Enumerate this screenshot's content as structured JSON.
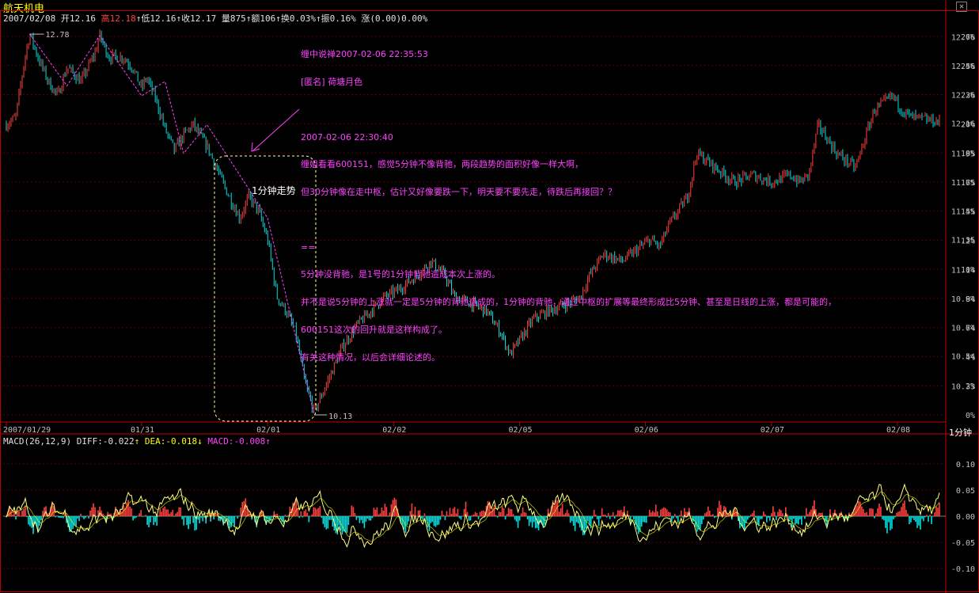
{
  "stock_name": "航天机电",
  "info": {
    "date": "2007/02/08",
    "open_label": "开",
    "open": "12.16",
    "high_label": "高",
    "high": "12.18",
    "low_label": "低",
    "low": "12.16",
    "close_label": "收",
    "close": "12.17",
    "vol_label": "量",
    "vol": "875",
    "amt_label": "额",
    "amt": "106",
    "turn_label": "换",
    "turn": "0.03%",
    "amp_label": "振",
    "amp": "0.16%",
    "chg_label": "涨",
    "chg": "(0.00)0.00%",
    "arrow": "↑"
  },
  "annotation": {
    "lines": [
      "缠中说禅2007-02-06 22:35:53",
      "[匿名] 荷塘月色",
      "",
      "2007-02-06 22:30:40",
      "缠姐看看600151，感觉5分钟不像背驰，两段趋势的面积好像一样大啊，",
      "但30分钟像在走中枢，估计又好像要跌一下，明天要不要先走，待跌后再接回？？",
      "",
      "==",
      "5分钟没背驰，是1号的1分钟背驰造成本次上涨的。",
      "并不是说5分钟的上涨就一定是5分钟的背驰造成的，1分钟的背驰，通过中枢的扩展等最终形成比5分钟、甚至是日线的上涨，都是可能的，",
      "600151这次的回升就是这样构成了。",
      "有关这种情况，以后会详细论述的。"
    ],
    "box_label": "1分钟走势"
  },
  "period": "1分钟",
  "colors": {
    "up": "#ff4040",
    "down": "#00e0e0",
    "dif": "#ffff80",
    "pen": "#ff40ff",
    "frame": "#c00000",
    "axis": "#c0c0c0"
  },
  "chart_data": [
    {
      "type": "candlestick",
      "title": "航天机电",
      "price_ticks": [
        "12.76",
        "12.56",
        "12.36",
        "12.16",
        "11.95",
        "11.75",
        "11.55",
        "11.35",
        "11.14",
        "10.94",
        "10.74",
        "10.54",
        "10.33"
      ],
      "pct_ticks": [
        "26%",
        "24%",
        "22%",
        "20%",
        "18%",
        "16%",
        "14%",
        "12%",
        "10%",
        "8%",
        "6%",
        "4%",
        "2%",
        "0%"
      ],
      "x_ticks": [
        "2007/01/29",
        "01/31",
        "02/01",
        "02/02",
        "02/05",
        "02/06",
        "02/07",
        "02/08"
      ],
      "ylim": [
        10.13,
        12.83
      ],
      "high_mark": "12.78",
      "low_mark": "10.13",
      "close_path": [
        [
          0,
          12.15
        ],
        [
          0.01,
          12.2
        ],
        [
          0.02,
          12.62
        ],
        [
          0.025,
          12.78
        ],
        [
          0.035,
          12.6
        ],
        [
          0.045,
          12.45
        ],
        [
          0.055,
          12.35
        ],
        [
          0.065,
          12.55
        ],
        [
          0.08,
          12.45
        ],
        [
          0.095,
          12.65
        ],
        [
          0.1,
          12.77
        ],
        [
          0.11,
          12.62
        ],
        [
          0.125,
          12.62
        ],
        [
          0.135,
          12.55
        ],
        [
          0.145,
          12.4
        ],
        [
          0.15,
          12.48
        ],
        [
          0.16,
          12.33
        ],
        [
          0.17,
          12.12
        ],
        [
          0.18,
          11.97
        ],
        [
          0.19,
          12.08
        ],
        [
          0.2,
          12.15
        ],
        [
          0.215,
          12.0
        ],
        [
          0.225,
          11.85
        ],
        [
          0.235,
          11.7
        ],
        [
          0.25,
          11.5
        ],
        [
          0.26,
          11.65
        ],
        [
          0.27,
          11.55
        ],
        [
          0.28,
          11.35
        ],
        [
          0.29,
          10.95
        ],
        [
          0.3,
          10.85
        ],
        [
          0.31,
          10.7
        ],
        [
          0.32,
          10.35
        ],
        [
          0.33,
          10.15
        ],
        [
          0.34,
          10.3
        ],
        [
          0.35,
          10.45
        ],
        [
          0.36,
          10.6
        ],
        [
          0.375,
          10.75
        ],
        [
          0.39,
          10.85
        ],
        [
          0.405,
          10.95
        ],
        [
          0.42,
          11.0
        ],
        [
          0.44,
          11.1
        ],
        [
          0.455,
          11.2
        ],
        [
          0.47,
          11.1
        ],
        [
          0.48,
          10.95
        ],
        [
          0.5,
          10.9
        ],
        [
          0.515,
          10.85
        ],
        [
          0.53,
          10.7
        ],
        [
          0.54,
          10.55
        ],
        [
          0.55,
          10.65
        ],
        [
          0.565,
          10.8
        ],
        [
          0.58,
          10.85
        ],
        [
          0.6,
          10.9
        ],
        [
          0.615,
          10.95
        ],
        [
          0.625,
          11.1
        ],
        [
          0.64,
          11.25
        ],
        [
          0.66,
          11.2
        ],
        [
          0.68,
          11.3
        ],
        [
          0.69,
          11.35
        ],
        [
          0.7,
          11.3
        ],
        [
          0.71,
          11.45
        ],
        [
          0.73,
          11.65
        ],
        [
          0.74,
          11.95
        ],
        [
          0.76,
          11.85
        ],
        [
          0.78,
          11.75
        ],
        [
          0.8,
          11.8
        ],
        [
          0.82,
          11.75
        ],
        [
          0.84,
          11.8
        ],
        [
          0.85,
          11.75
        ],
        [
          0.86,
          11.8
        ],
        [
          0.87,
          12.15
        ],
        [
          0.88,
          12.05
        ],
        [
          0.89,
          11.95
        ],
        [
          0.9,
          11.9
        ],
        [
          0.91,
          11.85
        ],
        [
          0.92,
          12.05
        ],
        [
          0.93,
          12.25
        ],
        [
          0.94,
          12.3
        ],
        [
          0.95,
          12.35
        ],
        [
          0.96,
          12.25
        ],
        [
          0.97,
          12.2
        ],
        [
          1.0,
          12.17
        ]
      ]
    },
    {
      "type": "macd",
      "title": "MACD(26,12,9)",
      "params": "MACD(26,12,9)",
      "diff_label": "DIFF",
      "diff": "-0.022",
      "dea_label": "DEA",
      "dea": "-0.018",
      "macd_label": "MACD",
      "macd": "-0.008",
      "y_ticks": [
        "0.10",
        "0.05",
        "0.00",
        "-0.05",
        "-0.10"
      ],
      "ylim": [
        -0.13,
        0.13
      ]
    }
  ]
}
